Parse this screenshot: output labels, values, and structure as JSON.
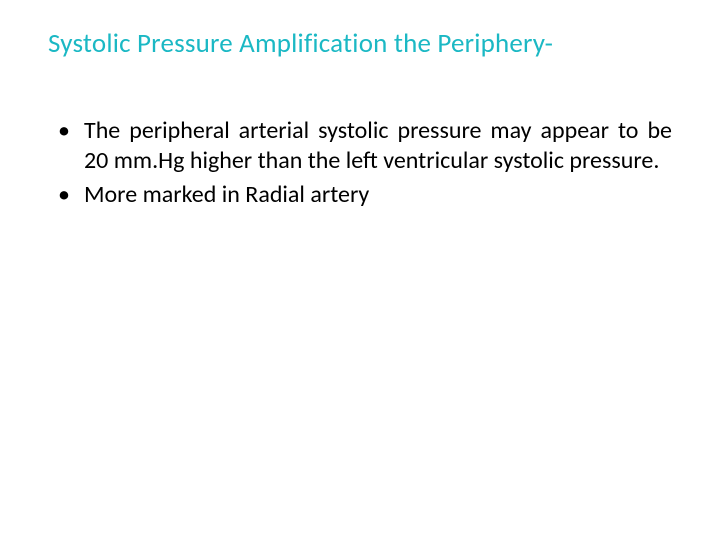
{
  "slide": {
    "title": "Systolic Pressure Amplification the Periphery-",
    "title_color": "#1bb8c4",
    "title_fontsize": 27,
    "body_color": "#000000",
    "body_fontsize": 24,
    "background_color": "#ffffff",
    "bullets": [
      "The peripheral arterial systolic pressure may appear to be 20 mm.Hg higher than the left ventricular systolic pressure.",
      "More  marked in Radial artery"
    ]
  }
}
